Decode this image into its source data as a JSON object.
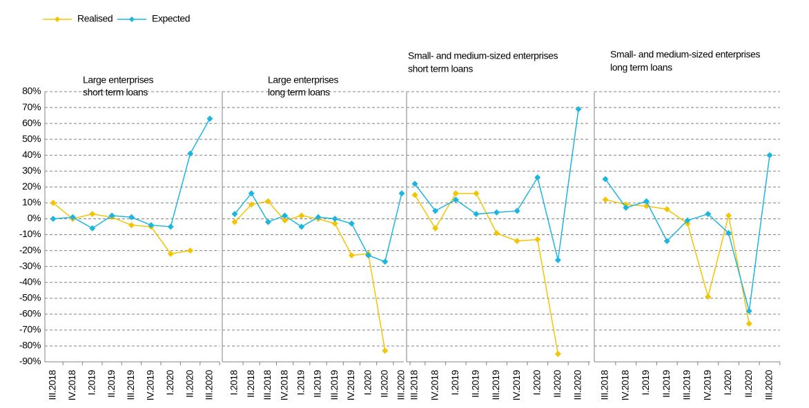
{
  "chart_data": {
    "type": "line",
    "legend": [
      {
        "name": "Realised",
        "color": "#f5c400"
      },
      {
        "name": "Expected",
        "color": "#1cb5e0"
      }
    ],
    "ylim": [
      -90,
      80
    ],
    "yticks": [
      {
        "value": 80,
        "label": "80%"
      },
      {
        "value": 70,
        "label": "70%"
      },
      {
        "value": 60,
        "label": "60%"
      },
      {
        "value": 50,
        "label": "50%"
      },
      {
        "value": 40,
        "label": "40%"
      },
      {
        "value": 30,
        "label": "30%"
      },
      {
        "value": 20,
        "label": "20%"
      },
      {
        "value": 10,
        "label": "10%"
      },
      {
        "value": 0,
        "label": "0%"
      },
      {
        "value": -10,
        "label": "-10%"
      },
      {
        "value": -20,
        "label": "-20%"
      },
      {
        "value": -30,
        "label": "-30%"
      },
      {
        "value": -40,
        "label": "-40%"
      },
      {
        "value": -50,
        "label": "-50%"
      },
      {
        "value": -60,
        "label": "-60%"
      },
      {
        "value": -70,
        "label": "-70%"
      },
      {
        "value": -80,
        "label": "-80%"
      },
      {
        "value": -90,
        "label": "-90%"
      }
    ],
    "grid": true,
    "panels": [
      {
        "title": [
          "Large enterprises",
          "short term loans"
        ],
        "categories": [
          "III.2018",
          "IV.2018",
          "I.2019",
          "II.2019",
          "III.2019",
          "IV.2019",
          "I.2020",
          "II.2020",
          "III.2020"
        ],
        "series": [
          {
            "values": [
              10,
              0,
              3,
              1,
              -4,
              -5,
              -22,
              -20,
              null
            ]
          },
          {
            "values": [
              0,
              1,
              -6,
              2,
              1,
              -4,
              -5,
              41,
              63
            ]
          }
        ]
      },
      {
        "title": [
          "Large enterprises",
          "long term loans"
        ],
        "categories": [
          "I.2018",
          "II.2018",
          "III.2018",
          "IV.2018",
          "I.2019",
          "II.2019",
          "III.2019",
          "IV.2019",
          "I.2020",
          "II.2020",
          "III.2020"
        ],
        "series": [
          {
            "values": [
              -2,
              9,
              11,
              -1,
              2,
              0,
              -3,
              -23,
              -22,
              -83,
              null
            ]
          },
          {
            "values": [
              3,
              16,
              -2,
              2,
              -5,
              1,
              0,
              -3,
              -23,
              -27,
              16
            ]
          }
        ]
      },
      {
        "title": [
          "Small- and medium-sized enterprises",
          "short term loans"
        ],
        "categories": [
          "III.2018",
          "IV.2018",
          "I.2019",
          "II.2019",
          "III.2019",
          "IV.2019",
          "I.2020",
          "II.2020",
          "III.2020"
        ],
        "series": [
          {
            "values": [
              15,
              -6,
              16,
              16,
              -9,
              -14,
              -13,
              -85,
              null
            ]
          },
          {
            "values": [
              22,
              5,
              12,
              3,
              4,
              5,
              26,
              -26,
              69
            ]
          }
        ]
      },
      {
        "title": [
          "Small- and medium-sized enterprises",
          "long term loans"
        ],
        "categories": [
          "III.2018",
          "IV.2018",
          "I.2019",
          "II.2019",
          "III.2019",
          "IV.2019",
          "I.2020",
          "II.2020",
          "III.2020"
        ],
        "series": [
          {
            "values": [
              12,
              9,
              8,
              6,
              -3,
              -49,
              2,
              -66,
              null
            ]
          },
          {
            "values": [
              25,
              7,
              11,
              -14,
              -1,
              3,
              -9,
              -58,
              40
            ]
          }
        ]
      }
    ]
  }
}
